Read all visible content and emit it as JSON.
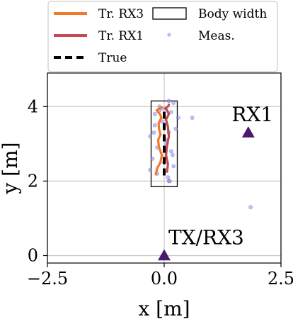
{
  "chart_data": {
    "type": "line",
    "xlabel": "x [m]",
    "ylabel": "y [m]",
    "xlim": [
      -2.5,
      2.5
    ],
    "ylim": [
      -0.2,
      4.9
    ],
    "x_ticks": [
      {
        "value": -2.5,
        "label": "−2.5"
      },
      {
        "value": 0.0,
        "label": "0.0"
      },
      {
        "value": 2.5,
        "label": "2.5"
      }
    ],
    "y_ticks": [
      {
        "value": 0,
        "label": "0"
      },
      {
        "value": 2,
        "label": "2"
      },
      {
        "value": 4,
        "label": "4"
      }
    ],
    "grid": true,
    "legend": {
      "placement": "top",
      "entries": [
        {
          "key": "tr_rx3",
          "label": "Tr. RX3",
          "kind": "line",
          "color": "#f07a2a"
        },
        {
          "key": "body",
          "label": "Body width",
          "kind": "rect",
          "color": "#000000"
        },
        {
          "key": "tr_rx1",
          "label": "Tr. RX1",
          "kind": "line",
          "color": "#c44a4f"
        },
        {
          "key": "meas",
          "label": "Meas.",
          "kind": "marker",
          "color": "#8c8ce8"
        },
        {
          "key": "true",
          "label": "True",
          "kind": "dashed",
          "color": "#000000"
        }
      ]
    },
    "body_width": {
      "x0": -0.28,
      "x1": 0.28,
      "y0": 1.85,
      "y1": 4.15
    },
    "true_path": {
      "x": [
        0.0,
        0.0
      ],
      "y": [
        2.15,
        3.95
      ],
      "color": "#000000"
    },
    "series": [
      {
        "name": "Tr. RX3",
        "color": "#f07a2a",
        "x": [
          -0.18,
          -0.15,
          -0.08,
          -0.05,
          -0.11,
          -0.13,
          -0.08,
          -0.11,
          -0.12,
          -0.06,
          -0.09,
          -0.13,
          -0.16,
          -0.1,
          -0.05
        ],
        "y": [
          2.18,
          2.35,
          2.5,
          2.7,
          2.9,
          3.1,
          3.25,
          3.4,
          3.55,
          3.7,
          3.8,
          3.85,
          3.9,
          3.95,
          3.98
        ]
      },
      {
        "name": "Tr. RX1",
        "color": "#c44a4f",
        "x": [
          0.06,
          0.08,
          0.04,
          0.06,
          0.1,
          0.08,
          0.04,
          0.1,
          0.06,
          0.02,
          0.08,
          0.1
        ],
        "y": [
          2.25,
          2.45,
          2.7,
          2.95,
          3.2,
          3.45,
          3.65,
          3.8,
          3.9,
          3.95,
          4.0,
          4.05
        ]
      }
    ],
    "measurements": {
      "color": "#8c8ce8",
      "x": [
        -0.3,
        -0.25,
        -0.15,
        0.05,
        0.1,
        -0.2,
        0.3,
        -0.1,
        0.2,
        -0.3,
        0.0,
        0.15,
        -0.05,
        0.25,
        -0.15,
        0.1,
        0.05,
        -0.2,
        0.2,
        -0.1,
        0.6,
        0.1,
        0.15,
        0.12,
        -0.05,
        0.08,
        -0.22,
        0.18,
        1.85
      ],
      "y": [
        2.3,
        2.6,
        2.9,
        3.1,
        3.3,
        3.5,
        3.7,
        3.9,
        4.1,
        3.2,
        2.5,
        2.8,
        3.6,
        3.4,
        2.2,
        2.0,
        3.0,
        3.8,
        2.4,
        4.0,
        3.7,
        4.15,
        3.85,
        2.0,
        3.95,
        2.1,
        3.3,
        2.7,
        1.3
      ]
    },
    "points": [
      {
        "key": "rx1",
        "label": "RX1",
        "x": 1.8,
        "y": 3.3,
        "color": "#4b1a6e"
      },
      {
        "key": "txrx3",
        "label": "TX/RX3",
        "x": 0.0,
        "y": 0.0,
        "color": "#4b1a6e"
      }
    ]
  }
}
